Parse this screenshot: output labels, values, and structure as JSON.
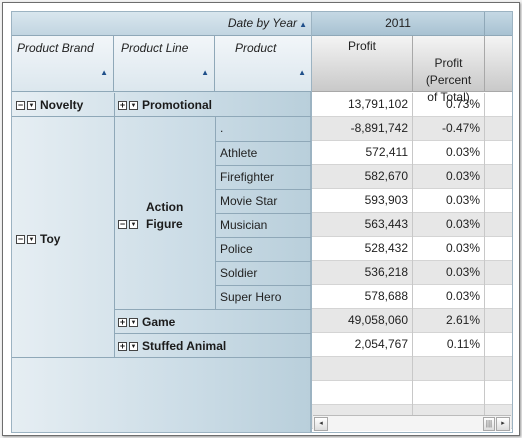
{
  "header": {
    "column_axis_label": "Date by Year",
    "year": "2011",
    "row_headers": [
      "Product Brand",
      "Product Line",
      "Product"
    ],
    "measures": [
      "Profit",
      "Profit\n(Percent\nof Total)"
    ]
  },
  "icons": {
    "sort": "sort-ascending-icon",
    "expand": "plus-icon",
    "collapse": "minus-icon",
    "drill": "drill-down-icon"
  },
  "brands": [
    {
      "label": "Novelty",
      "toggle": "−"
    },
    {
      "label": "Toy",
      "toggle": "−"
    }
  ],
  "lines": [
    {
      "label": "Promotional",
      "toggle": "+"
    },
    {
      "label": "Action\nFigure",
      "toggle": "−"
    },
    {
      "label": "Game",
      "toggle": "+"
    },
    {
      "label": "Stuffed Animal",
      "toggle": "+"
    }
  ],
  "products": [
    ".",
    "Athlete",
    "Firefighter",
    "Movie Star",
    "Musician",
    "Police",
    "Soldier",
    "Super Hero"
  ],
  "rows": [
    {
      "profit": "13,791,102",
      "pct": "0.73%"
    },
    {
      "profit": "-8,891,742",
      "pct": "-0.47%"
    },
    {
      "profit": "572,411",
      "pct": "0.03%"
    },
    {
      "profit": "582,670",
      "pct": "0.03%"
    },
    {
      "profit": "593,903",
      "pct": "0.03%"
    },
    {
      "profit": "563,443",
      "pct": "0.03%"
    },
    {
      "profit": "528,432",
      "pct": "0.03%"
    },
    {
      "profit": "536,218",
      "pct": "0.03%"
    },
    {
      "profit": "578,688",
      "pct": "0.03%"
    },
    {
      "profit": "49,058,060",
      "pct": "2.61%"
    },
    {
      "profit": "2,054,767",
      "pct": "0.11%"
    }
  ],
  "scrollbar": {
    "left_arrow": "◂",
    "right_arrow": "▸",
    "thumb": "|||"
  }
}
